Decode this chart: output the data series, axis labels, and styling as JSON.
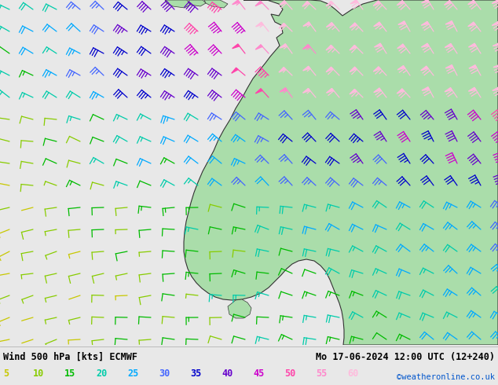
{
  "title_left": "Wind 500 hPa [kts] ECMWF",
  "title_right": "Mo 17-06-2024 12:00 UTC (12+240)",
  "copyright": "©weatheronline.co.uk",
  "legend_values": [
    5,
    10,
    15,
    20,
    25,
    30,
    35,
    40,
    45,
    50,
    55,
    60
  ],
  "speed_colors": [
    "#c8c800",
    "#88cc00",
    "#00bb00",
    "#00ccaa",
    "#00aaff",
    "#4466ff",
    "#0000cc",
    "#6600cc",
    "#cc00cc",
    "#ff44aa",
    "#ff88cc",
    "#ffbbdd"
  ],
  "bg_color": "#e8e8e8",
  "land_color": "#aaddaa",
  "coast_color": "#333333",
  "bottom_bar_color": "#ffffff",
  "fig_width": 6.34,
  "fig_height": 4.9,
  "dpi": 100
}
